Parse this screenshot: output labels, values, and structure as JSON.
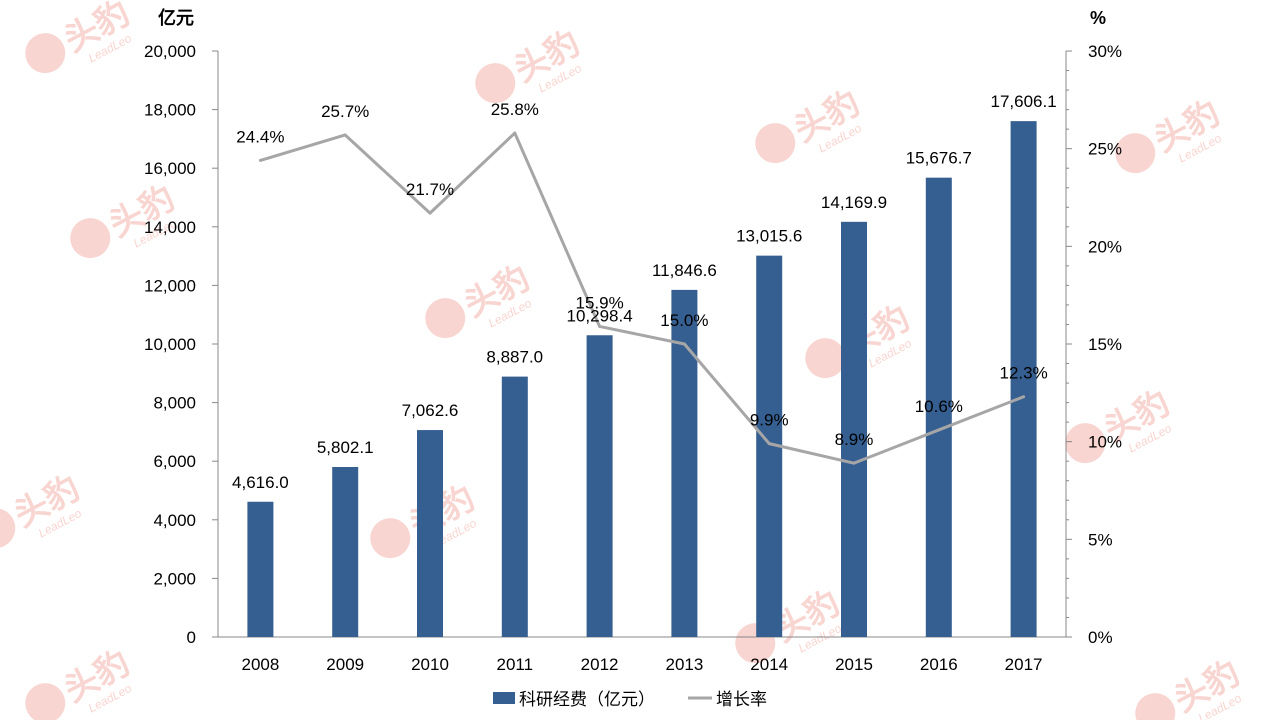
{
  "chart_data": {
    "type": "bar+line",
    "categories": [
      "2008",
      "2009",
      "2010",
      "2011",
      "2012",
      "2013",
      "2014",
      "2015",
      "2016",
      "2017"
    ],
    "series": [
      {
        "name": "科研经费（亿元）",
        "type": "bar",
        "axis": "left",
        "color": "#365f91",
        "values": [
          4616.0,
          5802.1,
          7062.6,
          8887.0,
          10298.4,
          11846.6,
          13015.6,
          14169.9,
          15676.7,
          17606.1
        ],
        "labels": [
          "4,616.0",
          "5,802.1",
          "7,062.6",
          "8,887.0",
          "10,298.4",
          "11,846.6",
          "13,015.6",
          "14,169.9",
          "15,676.7",
          "17,606.1"
        ]
      },
      {
        "name": "增长率",
        "type": "line",
        "axis": "right",
        "color": "#a6a6a6",
        "values": [
          24.4,
          25.7,
          21.7,
          25.8,
          15.9,
          15.0,
          9.9,
          8.9,
          10.6,
          12.3
        ],
        "labels": [
          "24.4%",
          "25.7%",
          "21.7%",
          "25.8%",
          "15.9%",
          "15.0%",
          "9.9%",
          "8.9%",
          "10.6%",
          "12.3%"
        ]
      }
    ],
    "y_left": {
      "unit": "亿元",
      "range": [
        0,
        20000
      ],
      "ticks": [
        0,
        2000,
        4000,
        6000,
        8000,
        10000,
        12000,
        14000,
        16000,
        18000,
        20000
      ],
      "tick_labels": [
        "0",
        "2,000",
        "4,000",
        "6,000",
        "8,000",
        "10,000",
        "12,000",
        "14,000",
        "16,000",
        "18,000",
        "20,000"
      ]
    },
    "y_right": {
      "unit": "%",
      "range": [
        0,
        30
      ],
      "ticks": [
        0,
        5,
        10,
        15,
        20,
        25,
        30
      ],
      "tick_labels": [
        "0%",
        "5%",
        "10%",
        "15%",
        "20%",
        "25%",
        "30%"
      ]
    },
    "legend": {
      "position": "bottom"
    },
    "grid": false
  },
  "watermark": {
    "text": "头豹",
    "subtext": "LeadLeo",
    "color": "#f4b3ab"
  }
}
